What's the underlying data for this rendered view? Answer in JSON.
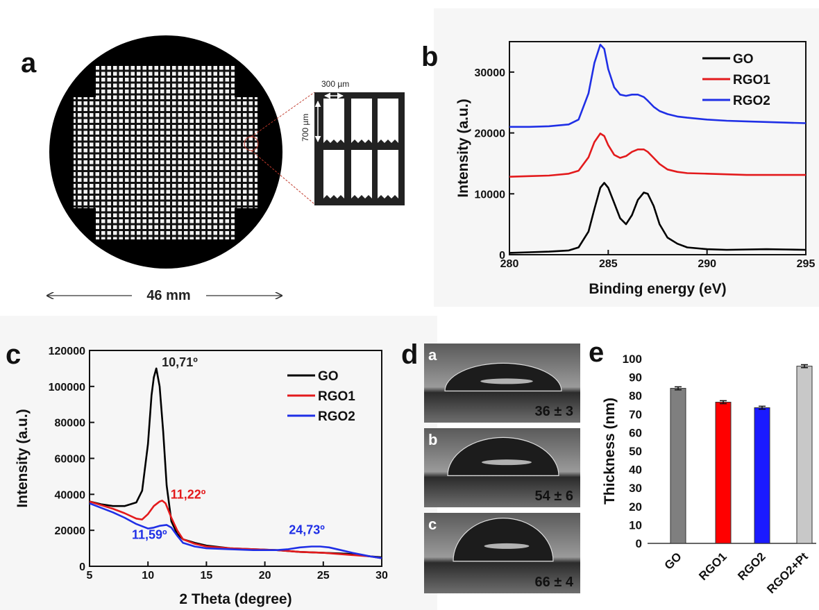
{
  "panel_a": {
    "letter": "a",
    "diameter_label": "46 mm",
    "zoom_width_label": "300 µm",
    "zoom_height_label": "700 µm"
  },
  "panel_b": {
    "letter": "b"
  },
  "panel_c": {
    "letter": "c"
  },
  "panel_d": {
    "letter": "d",
    "images": [
      {
        "sub": "a",
        "angle": "36 ± 3"
      },
      {
        "sub": "b",
        "angle": "54 ± 6"
      },
      {
        "sub": "c",
        "angle": "66 ± 4"
      }
    ]
  },
  "panel_e": {
    "letter": "e"
  },
  "colors": {
    "GO": "#000000",
    "RGO1": "#e31a1c",
    "RGO2": "#1f2fe6",
    "bar_GO": "#7f7f7f",
    "bar_RGO1": "#ff0000",
    "bar_RGO2": "#1a1aff",
    "bar_Pt": "#c8c8c8"
  },
  "chart_data": [
    {
      "id": "xps",
      "type": "line",
      "xlabel": "Binding energy (eV)",
      "ylabel": "Intensity (a.u.)",
      "xlim": [
        280,
        295
      ],
      "ylim": [
        0,
        35000
      ],
      "xticks": [
        280,
        285,
        290,
        295
      ],
      "yticks": [
        0,
        10000,
        20000,
        30000
      ],
      "legend": "top-right",
      "series": [
        {
          "name": "GO",
          "color": "#000000",
          "x": [
            280,
            281,
            282,
            283,
            283.5,
            284,
            284.3,
            284.6,
            284.8,
            285,
            285.3,
            285.6,
            285.9,
            286.2,
            286.5,
            286.8,
            287,
            287.3,
            287.6,
            288,
            288.5,
            289,
            290,
            291,
            292,
            293,
            294,
            295
          ],
          "y": [
            300,
            400,
            500,
            700,
            1200,
            3800,
            7500,
            11000,
            11800,
            11000,
            8500,
            6000,
            5000,
            6500,
            9000,
            10200,
            10000,
            8000,
            5000,
            2800,
            1800,
            1200,
            900,
            800,
            850,
            900,
            850,
            800
          ]
        },
        {
          "name": "RGO1",
          "color": "#e31a1c",
          "x": [
            280,
            281,
            282,
            283,
            283.5,
            284,
            284.3,
            284.6,
            284.8,
            285,
            285.3,
            285.6,
            285.9,
            286.2,
            286.5,
            286.8,
            287,
            287.3,
            287.6,
            288,
            288.5,
            289,
            290,
            291,
            292,
            293,
            294,
            295
          ],
          "y": [
            12800,
            12900,
            13000,
            13300,
            13800,
            16000,
            18500,
            19900,
            19500,
            18000,
            16400,
            15900,
            16200,
            16900,
            17300,
            17300,
            16900,
            15900,
            14900,
            14000,
            13600,
            13400,
            13300,
            13200,
            13100,
            13100,
            13100,
            13100
          ]
        },
        {
          "name": "RGO2",
          "color": "#1f2fe6",
          "x": [
            280,
            281,
            282,
            283,
            283.5,
            284,
            284.3,
            284.6,
            284.8,
            285,
            285.3,
            285.6,
            285.9,
            286.2,
            286.5,
            286.8,
            287,
            287.3,
            287.6,
            288,
            288.5,
            289,
            290,
            291,
            292,
            293,
            294,
            295
          ],
          "y": [
            21000,
            21000,
            21100,
            21400,
            22200,
            26500,
            31500,
            34500,
            33800,
            30500,
            27500,
            26300,
            26100,
            26300,
            26300,
            25900,
            25300,
            24300,
            23600,
            23100,
            22700,
            22500,
            22200,
            22000,
            21900,
            21800,
            21700,
            21600
          ]
        }
      ]
    },
    {
      "id": "xrd",
      "type": "line",
      "xlabel": "2 Theta (degree)",
      "ylabel": "Intensity (a.u.)",
      "xlim": [
        5,
        30
      ],
      "ylim": [
        0,
        120000
      ],
      "xticks": [
        5,
        10,
        15,
        20,
        25,
        30
      ],
      "yticks": [
        0,
        20000,
        40000,
        60000,
        80000,
        100000,
        120000
      ],
      "legend": "top-right",
      "series": [
        {
          "name": "GO",
          "color": "#000000",
          "x": [
            5,
            6,
            7,
            8,
            9,
            9.5,
            10,
            10.3,
            10.5,
            10.71,
            11,
            11.3,
            11.6,
            12,
            12.5,
            13,
            14,
            15,
            17,
            19,
            21,
            23,
            25,
            27,
            29,
            30
          ],
          "y": [
            36000,
            34500,
            33500,
            33500,
            35500,
            42000,
            68000,
            95000,
            105000,
            110000,
            100000,
            75000,
            45000,
            25000,
            18000,
            15000,
            13000,
            11500,
            10000,
            9500,
            9000,
            8000,
            7500,
            7000,
            5500,
            5000
          ]
        },
        {
          "name": "RGO1",
          "color": "#e31a1c",
          "x": [
            5,
            6,
            7,
            8,
            9,
            9.5,
            10,
            10.5,
            11,
            11.22,
            11.5,
            12,
            12.5,
            13,
            14,
            15,
            17,
            19,
            21,
            23,
            25,
            27,
            29,
            30
          ],
          "y": [
            36000,
            34000,
            32000,
            29500,
            26500,
            26000,
            29000,
            33500,
            36000,
            36500,
            35000,
            27000,
            20000,
            15000,
            12500,
            11000,
            10000,
            9500,
            9000,
            8000,
            7500,
            6500,
            5500,
            4500
          ]
        },
        {
          "name": "RGO2",
          "color": "#1f2fe6",
          "x": [
            5,
            6,
            7,
            8,
            9,
            10,
            10.5,
            11,
            11.59,
            12,
            12.5,
            13,
            14,
            15,
            17,
            19,
            21,
            22,
            23,
            24,
            24.73,
            25.5,
            26.5,
            27.5,
            29,
            30
          ],
          "y": [
            35000,
            32500,
            30000,
            27000,
            23500,
            21000,
            21500,
            22500,
            23000,
            21500,
            17000,
            13000,
            11000,
            10000,
            9500,
            9000,
            9000,
            9500,
            10500,
            11000,
            11000,
            10500,
            9000,
            7500,
            5500,
            4500
          ]
        }
      ],
      "annotations": [
        {
          "text": "10,71º",
          "color": "#222222"
        },
        {
          "text": "11,22º",
          "color": "#e31a1c"
        },
        {
          "text": "11,59º",
          "color": "#1f2fe6"
        },
        {
          "text": "24,73º",
          "color": "#1f2fe6"
        }
      ]
    },
    {
      "id": "thickness",
      "type": "bar",
      "ylabel": "Thickness (nm)",
      "ylim": [
        0,
        100
      ],
      "yticks": [
        0,
        10,
        20,
        30,
        40,
        50,
        60,
        70,
        80,
        90,
        100
      ],
      "categories": [
        "GO",
        "RGO1",
        "RGO2",
        "RGO2+Pt"
      ],
      "values": [
        84,
        76.5,
        73.5,
        96
      ],
      "errors": [
        0.8,
        0.8,
        0.8,
        0.8
      ]
    }
  ]
}
